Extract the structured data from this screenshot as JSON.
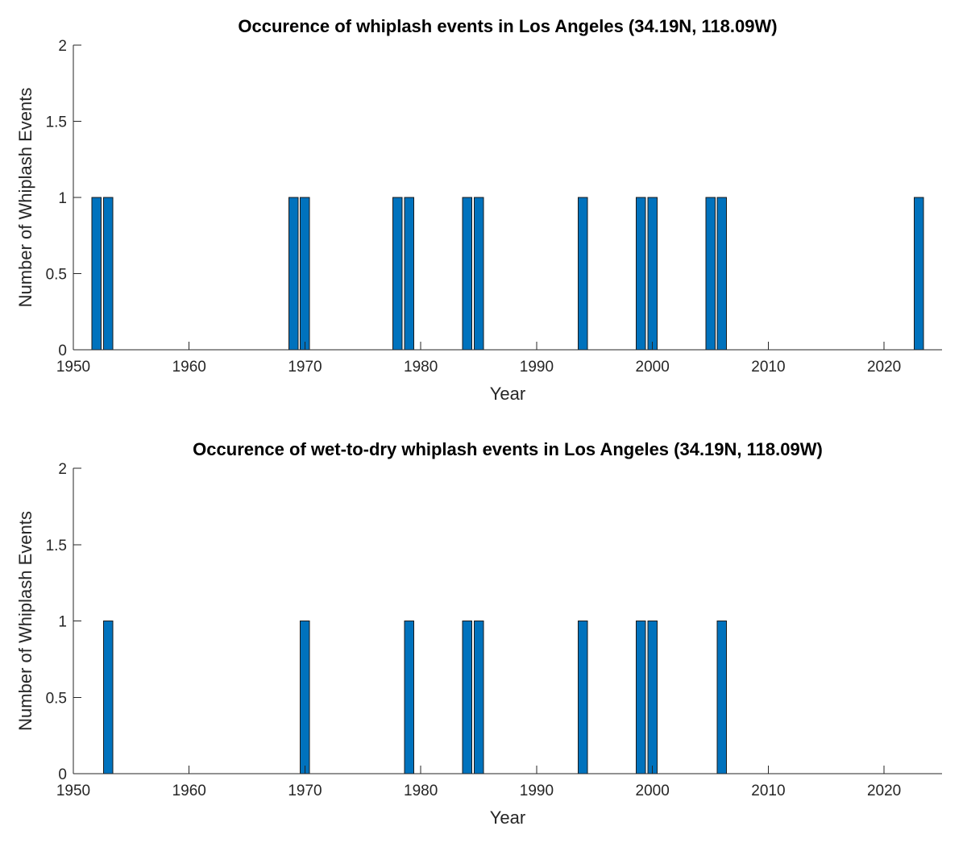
{
  "colors": {
    "bar": "#0072BD",
    "bar_edge": "#1a1a1a",
    "axis": "#262626"
  },
  "chart_data": [
    {
      "type": "bar",
      "title": "Occurence of whiplash events in Los Angeles (34.19N, 118.09W)",
      "xlabel": "Year",
      "ylabel": "Number of Whiplash Events",
      "xlim": [
        1950,
        2025
      ],
      "ylim": [
        0,
        2
      ],
      "xticks": [
        "1950",
        "1960",
        "1970",
        "1980",
        "1990",
        "2000",
        "2010",
        "2020"
      ],
      "yticks": [
        "0",
        "0.5",
        "1",
        "1.5",
        "2"
      ],
      "grid": false,
      "x": [
        1952,
        1953,
        1969,
        1970,
        1978,
        1979,
        1984,
        1985,
        1994,
        1999,
        2000,
        2005,
        2006,
        2023
      ],
      "values": [
        1,
        1,
        1,
        1,
        1,
        1,
        1,
        1,
        1,
        1,
        1,
        1,
        1,
        1
      ]
    },
    {
      "type": "bar",
      "title": "Occurence of wet-to-dry whiplash events in Los Angeles (34.19N, 118.09W)",
      "xlabel": "Year",
      "ylabel": "Number of Whiplash Events",
      "xlim": [
        1950,
        2025
      ],
      "ylim": [
        0,
        2
      ],
      "xticks": [
        "1950",
        "1960",
        "1970",
        "1980",
        "1990",
        "2000",
        "2010",
        "2020"
      ],
      "yticks": [
        "0",
        "0.5",
        "1",
        "1.5",
        "2"
      ],
      "grid": false,
      "x": [
        1953,
        1970,
        1979,
        1984,
        1985,
        1994,
        1999,
        2000,
        2006
      ],
      "values": [
        1,
        1,
        1,
        1,
        1,
        1,
        1,
        1,
        1
      ]
    }
  ]
}
